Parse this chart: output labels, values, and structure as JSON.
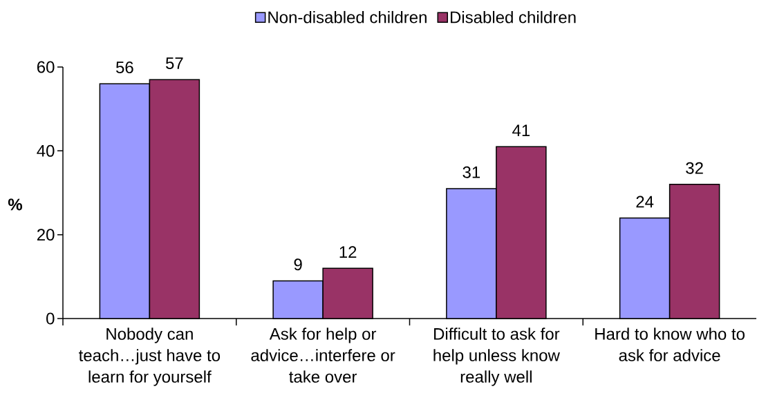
{
  "chart_data": {
    "type": "bar",
    "categories": [
      "Nobody can teach…just have to learn for yourself",
      "Ask for help or advice…interfere or take over",
      "Difficult to ask for help unless know really well",
      "Hard to know who to ask for advice"
    ],
    "series": [
      {
        "name": "Non-disabled children",
        "color": "#9999ff",
        "values": [
          56,
          9,
          31,
          24
        ]
      },
      {
        "name": "Disabled children",
        "color": "#993366",
        "values": [
          57,
          12,
          41,
          32
        ]
      }
    ],
    "ylabel": "%",
    "ylim": [
      0,
      60
    ],
    "yticks": [
      0,
      20,
      40,
      60
    ],
    "data_labels": true,
    "legend": "top"
  }
}
